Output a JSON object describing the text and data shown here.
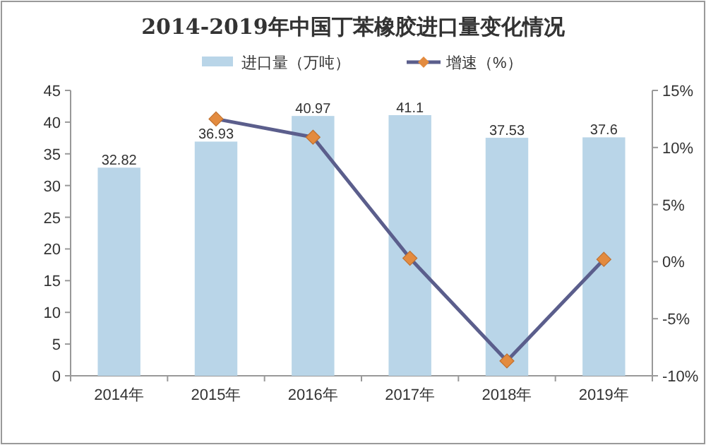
{
  "chart_data": {
    "type": "bar",
    "title": "2014-2019年中国丁苯橡胶进口量变化情况",
    "categories": [
      "2014年",
      "2015年",
      "2016年",
      "2017年",
      "2018年",
      "2019年"
    ],
    "series": [
      {
        "name": "进口量（万吨）",
        "color": "#b9d5e8",
        "values": [
          32.82,
          36.93,
          40.97,
          41.1,
          37.53,
          37.6
        ],
        "data_labels": true
      },
      {
        "name": "增速（%）",
        "type": "line",
        "axis": "y2",
        "color": "#5b5e8c",
        "marker": "diamond",
        "values": [
          null,
          12.5,
          10.9,
          0.3,
          -8.7,
          0.2
        ]
      }
    ],
    "ylim": [
      0,
      45
    ],
    "yticks": [
      0,
      5,
      10,
      15,
      20,
      25,
      30,
      35,
      40,
      45
    ],
    "y2lim": [
      -10,
      15
    ],
    "y2ticks": [
      {
        "value": -10,
        "label": "-10%"
      },
      {
        "value": -5,
        "label": "-5%"
      },
      {
        "value": 0,
        "label": "0%"
      },
      {
        "value": 5,
        "label": "5%"
      },
      {
        "value": 10,
        "label": "10%"
      },
      {
        "value": 15,
        "label": "15%"
      }
    ],
    "grid": false,
    "legend": "top"
  }
}
